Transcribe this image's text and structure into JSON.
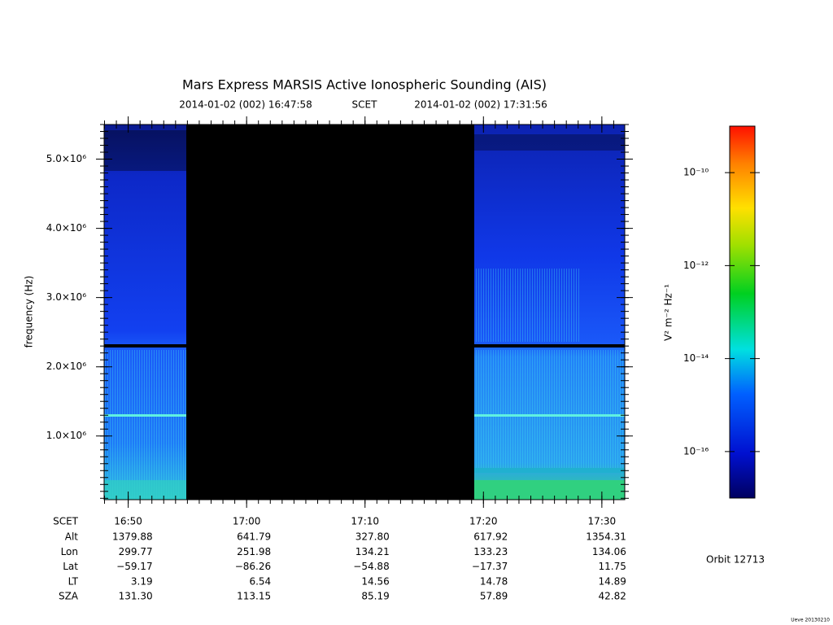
{
  "chart_data": {
    "type": "spectrogram",
    "title": "Mars Express MARSIS Active Ionospheric Sounding (AIS)",
    "start": "2014-01-02 (002) 16:47:58",
    "scet": "SCET",
    "end": "2014-01-02 (002) 17:31:56",
    "y_label": "frequency (Hz)",
    "ylim": [
      80000,
      5500000
    ],
    "yticks": [
      {
        "value": 1000000,
        "label": "1.0×10⁶"
      },
      {
        "value": 2000000,
        "label": "2.0×10⁶"
      },
      {
        "value": 3000000,
        "label": "3.0×10⁶"
      },
      {
        "value": 4000000,
        "label": "4.0×10⁶"
      },
      {
        "value": 5000000,
        "label": "5.0×10⁶"
      }
    ],
    "xticks": [
      "16:50",
      "17:00",
      "17:10",
      "17:20",
      "17:30"
    ],
    "ephemeris": [
      {
        "name": "Alt",
        "values": [
          "1379.88",
          "641.79",
          "327.80",
          "617.92",
          "1354.31"
        ]
      },
      {
        "name": "Lon",
        "values": [
          "299.77",
          "251.98",
          "134.21",
          "133.23",
          "134.06"
        ]
      },
      {
        "name": "Lat",
        "values": [
          "−59.17",
          "−86.26",
          "−54.88",
          "−17.37",
          "11.75"
        ]
      },
      {
        "name": "LT",
        "values": [
          "3.19",
          "6.54",
          "14.56",
          "14.78",
          "14.89"
        ]
      },
      {
        "name": "SZA",
        "values": [
          "131.30",
          "113.15",
          "85.19",
          "57.89",
          "42.82"
        ]
      }
    ],
    "colorbar": {
      "label": "V² m⁻² Hz⁻¹",
      "log": true,
      "zlim": [
        1e-17,
        1e-09
      ],
      "ticks": [
        {
          "value": 1e-10,
          "label": "10⁻¹⁰"
        },
        {
          "value": 1e-12,
          "label": "10⁻¹²"
        },
        {
          "value": 1e-14,
          "label": "10⁻¹⁴"
        },
        {
          "value": 1e-16,
          "label": "10⁻¹⁶"
        }
      ]
    },
    "orbit": "Orbit 12713",
    "footer": "Ueve 20130210"
  }
}
